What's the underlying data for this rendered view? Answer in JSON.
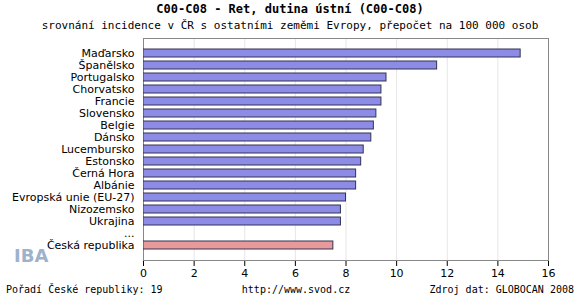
{
  "chart_data": {
    "type": "bar",
    "orientation": "horizontal",
    "title": "C00-C08 - Ret, dutina ústní (C00-C08)",
    "subtitle": "srovnání incidence v ČR s ostatními zeměmi Evropy, přepočet na 100 000 osob",
    "categories": [
      "Maďarsko",
      "Španělsko",
      "Portugalsko",
      "Chorvatsko",
      "Francie",
      "Slovensko",
      "Belgie",
      "Dánsko",
      "Lucembursko",
      "Estonsko",
      "Černá Hora",
      "Albánie",
      "Evropská unie (EU-27)",
      "Nizozemsko",
      "Ukrajina",
      "...",
      "Česká republika"
    ],
    "values": [
      14.9,
      11.6,
      9.6,
      9.4,
      9.4,
      9.2,
      9.1,
      9.0,
      8.7,
      8.6,
      8.4,
      8.4,
      8.0,
      7.8,
      7.8,
      null,
      7.5
    ],
    "colors": [
      "#8c8ce6",
      "#8c8ce6",
      "#8c8ce6",
      "#8c8ce6",
      "#8c8ce6",
      "#8c8ce6",
      "#8c8ce6",
      "#8c8ce6",
      "#8c8ce6",
      "#8c8ce6",
      "#8c8ce6",
      "#8c8ce6",
      "#8c8ce6",
      "#8c8ce6",
      "#8c8ce6",
      null,
      "#e89a9a"
    ],
    "xlim": [
      0,
      16
    ],
    "xticks": [
      0,
      2,
      4,
      6,
      8,
      10,
      12,
      14,
      16
    ],
    "grid": true,
    "annotations": [
      "Pořadí České republiky: 19",
      "http://www.svod.cz",
      "Zdroj dat: GLOBOCAN 2008",
      "IBA"
    ]
  }
}
